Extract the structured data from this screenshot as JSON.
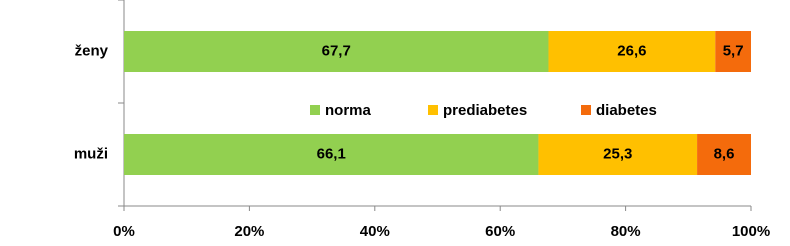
{
  "chart_data": {
    "type": "stacked-barh",
    "categories": [
      "ženy",
      "muži"
    ],
    "series": [
      {
        "name": "norma",
        "color": "#92d050",
        "values": [
          67.7,
          66.1
        ],
        "value_labels": [
          "67,7",
          "66,1"
        ]
      },
      {
        "name": "prediabetes",
        "color": "#ffc000",
        "values": [
          26.6,
          25.3
        ],
        "value_labels": [
          "26,6",
          "25,3"
        ]
      },
      {
        "name": "diabetes",
        "color": "#f46b0c",
        "values": [
          5.7,
          8.6
        ],
        "value_labels": [
          "5,7",
          "8,6"
        ]
      }
    ],
    "xlim": [
      0,
      100
    ],
    "xticks": [
      {
        "value": 0,
        "label": "0%"
      },
      {
        "value": 20,
        "label": "20%"
      },
      {
        "value": 40,
        "label": "40%"
      },
      {
        "value": 60,
        "label": "60%"
      },
      {
        "value": 80,
        "label": "80%"
      },
      {
        "value": 100,
        "label": "100%"
      }
    ],
    "grid": false
  }
}
